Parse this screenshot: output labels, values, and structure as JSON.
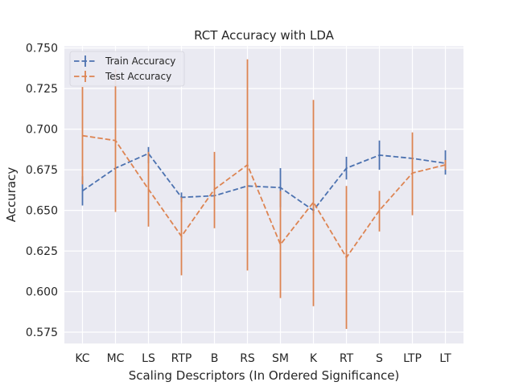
{
  "chart_data": {
    "type": "line",
    "title": "RCT Accuracy with LDA",
    "xlabel": "Scaling Descriptors (In Ordered Significance)",
    "ylabel": "Accuracy",
    "categories": [
      "KC",
      "MC",
      "LS",
      "RTP",
      "B",
      "RS",
      "SM",
      "K",
      "RT",
      "S",
      "LTP",
      "LT"
    ],
    "yticks": [
      "0.575",
      "0.600",
      "0.625",
      "0.650",
      "0.675",
      "0.700",
      "0.725",
      "0.750"
    ],
    "ylim": [
      0.568,
      0.751
    ],
    "grid": true,
    "legend_position": "top-left",
    "series": [
      {
        "name": "Train Accuracy",
        "color": "#4c72b0",
        "values": [
          0.662,
          0.676,
          0.685,
          0.658,
          0.659,
          0.665,
          0.664,
          0.65,
          0.676,
          0.684,
          0.682,
          0.679
        ],
        "err_low": [
          0.653,
          0.676,
          0.679,
          0.655,
          0.659,
          0.665,
          0.652,
          0.648,
          0.669,
          0.675,
          0.682,
          0.672
        ],
        "err_high": [
          0.671,
          0.676,
          0.689,
          0.661,
          0.659,
          0.665,
          0.676,
          0.652,
          0.683,
          0.693,
          0.682,
          0.687
        ]
      },
      {
        "name": "Test Accuracy",
        "color": "#dd8452",
        "values": [
          0.696,
          0.693,
          0.663,
          0.634,
          0.663,
          0.678,
          0.629,
          0.655,
          0.621,
          0.65,
          0.673,
          0.678
        ],
        "err_low": [
          0.666,
          0.649,
          0.64,
          0.61,
          0.639,
          0.613,
          0.596,
          0.591,
          0.577,
          0.637,
          0.647,
          0.675
        ],
        "err_high": [
          0.726,
          0.737,
          0.686,
          0.658,
          0.686,
          0.743,
          0.662,
          0.718,
          0.665,
          0.662,
          0.698,
          0.681
        ]
      }
    ]
  }
}
